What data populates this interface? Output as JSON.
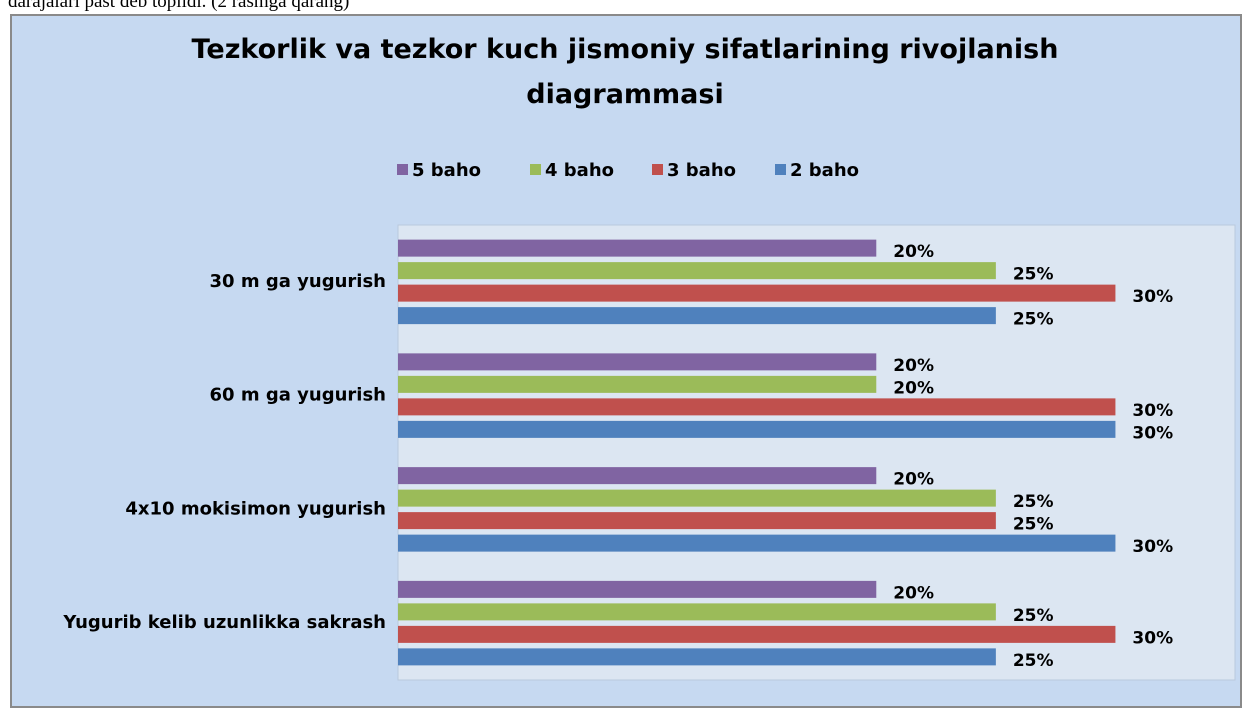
{
  "text_above": "darajalari past deb topildi. (2 rasmga qarang)",
  "chart_data": {
    "type": "bar",
    "orientation": "horizontal",
    "title": "Tezkorlik va tezkor kuch jismoniy sifatlarining rivojlanish diagrammasi",
    "categories": [
      "30 m ga yugurish",
      "60 m ga yugurish",
      "4x10 mokisimon yugurish",
      "Yugurib kelib uzunlikka sakrash"
    ],
    "series": [
      {
        "name": "5 baho",
        "color": "#8064a2",
        "values": [
          20,
          20,
          20,
          20
        ],
        "value_labels": [
          "20%",
          "20%",
          "20%",
          "20%"
        ]
      },
      {
        "name": "4 baho",
        "color": "#9bbb59",
        "values": [
          25,
          20,
          25,
          25
        ],
        "value_labels": [
          "25%",
          "20%",
          "25%",
          "25%"
        ]
      },
      {
        "name": "3 baho",
        "color": "#c0504d",
        "values": [
          30,
          30,
          25,
          30
        ],
        "value_labels": [
          "30%",
          "30%",
          "25%",
          "30%"
        ]
      },
      {
        "name": "2 baho",
        "color": "#4f81bd",
        "values": [
          25,
          30,
          30,
          25
        ],
        "value_labels": [
          "25%",
          "30%",
          "30%",
          "25%"
        ]
      }
    ],
    "xlim": [
      0,
      35
    ],
    "legend": "top"
  }
}
